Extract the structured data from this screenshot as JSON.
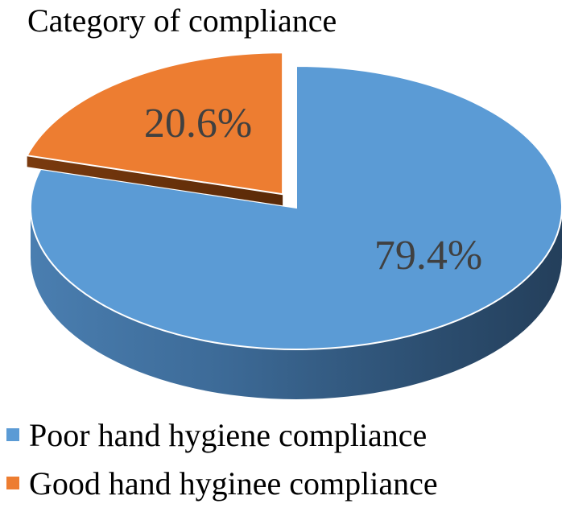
{
  "chart_data": {
    "type": "pie",
    "title": "Category  of compliance",
    "categories": [
      "Poor hand hygiene compliance",
      "Good hand hyginee compliance"
    ],
    "values": [
      79.4,
      20.6
    ],
    "data_labels": [
      "79.4%",
      "20.6%"
    ],
    "colors": [
      "#5B9BD5",
      "#ED7D31"
    ],
    "style": "3d-exploded",
    "legend_position": "bottom"
  }
}
